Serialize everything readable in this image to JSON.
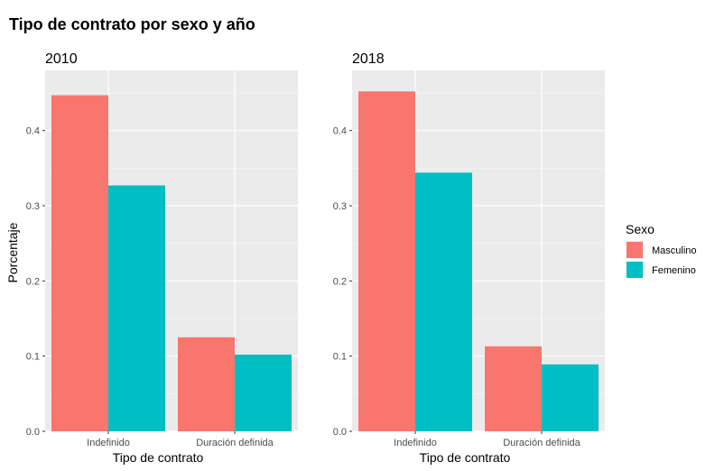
{
  "title": "Tipo de contrato por sexo y año",
  "legend": {
    "title": "Sexo"
  },
  "chart_data": {
    "type": "bar",
    "title": "Tipo de contrato por sexo y año",
    "xlabel": "Tipo de contrato",
    "ylabel": "Porcentaje",
    "ylim": [
      0,
      0.48
    ],
    "y_ticks": [
      0.0,
      0.1,
      0.2,
      0.3,
      0.4
    ],
    "y_tick_labels": [
      "0.0",
      "0.1",
      "0.2",
      "0.3",
      "0.4"
    ],
    "grid": true,
    "legend_position": "right",
    "categories": [
      "Indefinido",
      "Duración definida"
    ],
    "series_names": [
      "Masculino",
      "Femenino"
    ],
    "series_colors": [
      "#F8766D",
      "#00BFC4"
    ],
    "panels": [
      {
        "name": "2010",
        "series": [
          {
            "name": "Masculino",
            "values": [
              0.447,
              0.125
            ]
          },
          {
            "name": "Femenino",
            "values": [
              0.327,
              0.102
            ]
          }
        ]
      },
      {
        "name": "2018",
        "series": [
          {
            "name": "Masculino",
            "values": [
              0.452,
              0.113
            ]
          },
          {
            "name": "Femenino",
            "values": [
              0.344,
              0.089
            ]
          }
        ]
      }
    ]
  }
}
